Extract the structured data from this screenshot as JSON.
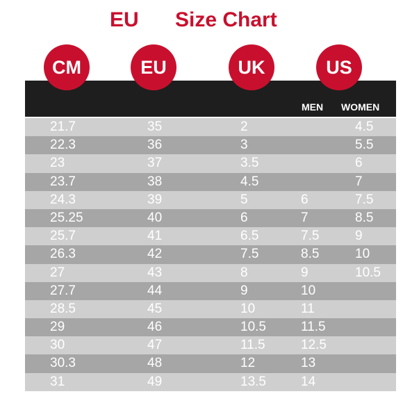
{
  "title": {
    "eu": "EU",
    "chart": "Size Chart"
  },
  "columns": {
    "cm": "CM",
    "eu": "EU",
    "uk": "UK",
    "us": "US"
  },
  "subheaders": {
    "men": "MEN",
    "women": "WOMEN"
  },
  "colors": {
    "accent": "#c8102e",
    "header_band": "#1e1e1e",
    "row_light": "#cfcfcf",
    "row_dark": "#a6a6a6",
    "text": "#ffffff"
  },
  "rows": [
    {
      "cm": "21.7",
      "eu": "35",
      "uk": "2",
      "us_men": "",
      "us_women": "4.5"
    },
    {
      "cm": "22.3",
      "eu": "36",
      "uk": "3",
      "us_men": "",
      "us_women": "5.5"
    },
    {
      "cm": "23",
      "eu": "37",
      "uk": "3.5",
      "us_men": "",
      "us_women": "6"
    },
    {
      "cm": "23.7",
      "eu": "38",
      "uk": "4.5",
      "us_men": "",
      "us_women": "7"
    },
    {
      "cm": "24.3",
      "eu": "39",
      "uk": "5",
      "us_men": "6",
      "us_women": "7.5"
    },
    {
      "cm": "25.25",
      "eu": "40",
      "uk": "6",
      "us_men": "7",
      "us_women": "8.5"
    },
    {
      "cm": "25.7",
      "eu": "41",
      "uk": "6.5",
      "us_men": "7.5",
      "us_women": "9"
    },
    {
      "cm": "26.3",
      "eu": "42",
      "uk": "7.5",
      "us_men": "8.5",
      "us_women": "10"
    },
    {
      "cm": "27",
      "eu": "43",
      "uk": "8",
      "us_men": "9",
      "us_women": "10.5"
    },
    {
      "cm": "27.7",
      "eu": "44",
      "uk": "9",
      "us_men": "10",
      "us_women": ""
    },
    {
      "cm": "28.5",
      "eu": "45",
      "uk": "10",
      "us_men": "11",
      "us_women": ""
    },
    {
      "cm": "29",
      "eu": "46",
      "uk": "10.5",
      "us_men": "11.5",
      "us_women": ""
    },
    {
      "cm": "30",
      "eu": "47",
      "uk": "11.5",
      "us_men": "12.5",
      "us_women": ""
    },
    {
      "cm": "30.3",
      "eu": "48",
      "uk": "12",
      "us_men": "13",
      "us_women": ""
    },
    {
      "cm": "31",
      "eu": "49",
      "uk": "13.5",
      "us_men": "14",
      "us_women": ""
    }
  ]
}
